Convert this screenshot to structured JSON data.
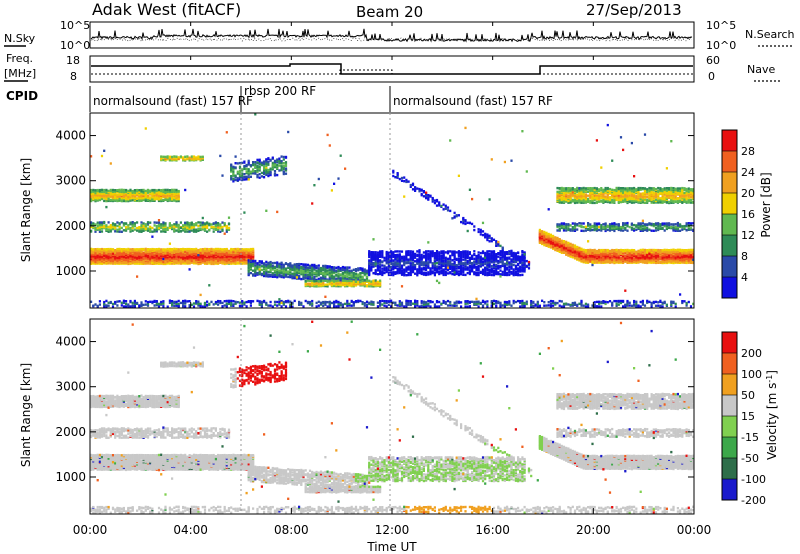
{
  "header": {
    "station": "Adak West (fitACF)",
    "beam": "Beam 20",
    "date": "27/Sep/2013"
  },
  "panels": {
    "nsky_label": "N.Sky",
    "nsearch_label": "N.Search",
    "nsky_ticks": [
      "10^5",
      "10^0"
    ],
    "nsky_ticks_right": [
      "10^5",
      "10^0"
    ],
    "freq_label_1": "Freq.",
    "freq_label_2": "[MHz]",
    "freq_ticks": [
      "18",
      "8"
    ],
    "nave_label": "Nave",
    "nave_ticks": [
      "60",
      "0"
    ],
    "cpid_label": "CPID",
    "cpid_segments": [
      {
        "label": "normalsound (fast) 157 RF",
        "start": 0,
        "end": 6
      },
      {
        "label": "rbsp 200 RF",
        "start": 6,
        "end": 12
      },
      {
        "label": "normalsound (fast) 157 RF",
        "start": 12,
        "end": 24
      }
    ]
  },
  "chart_data": [
    {
      "type": "heatmap",
      "name": "power",
      "ylabel": "Slant Range [km]",
      "yticks": [
        "1000",
        "2000",
        "3000",
        "4000"
      ],
      "colorbar_label": "Power [dB]",
      "colorbar_ticks": [
        "4",
        "8",
        "12",
        "16",
        "20",
        "24",
        "28"
      ],
      "colors": [
        "#1010e0",
        "#2a4aa8",
        "#2e8b57",
        "#60b850",
        "#f0d000",
        "#f0a020",
        "#f06020",
        "#e81010"
      ],
      "xlim": [
        0,
        24
      ],
      "ylim": [
        180,
        4500
      ]
    },
    {
      "type": "heatmap",
      "name": "velocity",
      "ylabel": "Slant Range [km]",
      "yticks": [
        "1000",
        "2000",
        "3000",
        "4000"
      ],
      "colorbar_label": "Velocity [m s^-1]",
      "colorbar_ticks": [
        "200",
        "100",
        "50",
        "15",
        "-15",
        "-50",
        "-100",
        "-200"
      ],
      "colors": [
        "#1a1acc",
        "#2e6e4a",
        "#3ca84a",
        "#80d050",
        "#c8c8c8",
        "#f0a020",
        "#f06020",
        "#e81010"
      ],
      "xlim": [
        0,
        24
      ],
      "ylim": [
        180,
        4500
      ]
    }
  ],
  "xaxis": {
    "label": "Time UT",
    "ticks": [
      "00:00",
      "04:00",
      "08:00",
      "12:00",
      "16:00",
      "20:00",
      "00:00"
    ]
  }
}
